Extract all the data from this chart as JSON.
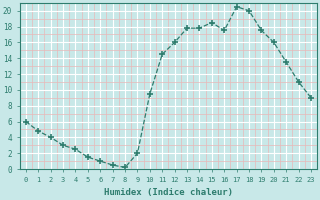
{
  "x": [
    0,
    1,
    2,
    3,
    4,
    5,
    6,
    7,
    8,
    9,
    10,
    11,
    12,
    13,
    14,
    15,
    16,
    17,
    18,
    19,
    20,
    21,
    22,
    23
  ],
  "y": [
    6,
    4.8,
    4,
    3,
    2.5,
    1.5,
    1,
    0.5,
    0.2,
    2,
    9.5,
    14.5,
    16,
    17.8,
    17.8,
    18.5,
    17.5,
    20.5,
    20,
    17.5,
    16,
    13.5,
    11,
    9
  ],
  "line_color": "#2e7d6e",
  "marker": "P",
  "marker_size": 3,
  "bg_color": "#c8e8e8",
  "grid_major_color": "#ffffff",
  "grid_minor_color": "#e8b8b8",
  "xlabel": "Humidex (Indice chaleur)",
  "xlim": [
    -0.5,
    23.5
  ],
  "ylim": [
    0,
    21
  ],
  "yticks": [
    0,
    2,
    4,
    6,
    8,
    10,
    12,
    14,
    16,
    18,
    20
  ],
  "xticks": [
    0,
    1,
    2,
    3,
    4,
    5,
    6,
    7,
    8,
    9,
    10,
    11,
    12,
    13,
    14,
    15,
    16,
    17,
    18,
    19,
    20,
    21,
    22,
    23
  ],
  "tick_color": "#2e7d6e",
  "label_color": "#2e7d6e",
  "spine_color": "#2e7d6e"
}
